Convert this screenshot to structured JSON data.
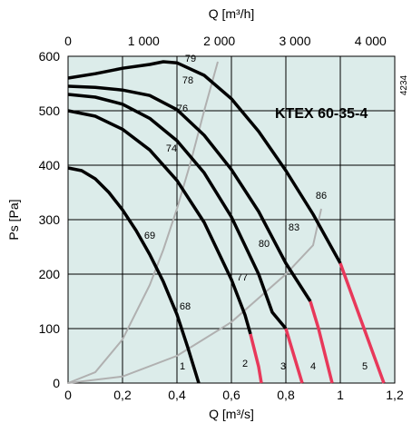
{
  "chart_data": {
    "type": "line",
    "title": "KTEX 60-35-4",
    "code": "4234",
    "xlabel": "Q [m³/s]",
    "x2label": "Q [m³/h]",
    "ylabel": "Ps [Pa]",
    "xlim": [
      0,
      1.2
    ],
    "ylim": [
      0,
      600
    ],
    "x2lim": [
      0,
      4320
    ],
    "grid": true,
    "x_ticks": [
      0,
      0.2,
      0.4,
      0.6,
      0.8,
      1.0,
      1.2
    ],
    "x_tick_labels": [
      "0",
      "0,2",
      "0,4",
      "0,6",
      "0,8",
      "1",
      "1,2"
    ],
    "x2_ticks": [
      0,
      1000,
      2000,
      3000,
      4000
    ],
    "x2_tick_labels": [
      "0",
      "1 000",
      "2 000",
      "3 000",
      "4 000"
    ],
    "y_ticks": [
      0,
      100,
      200,
      300,
      400,
      500,
      600
    ],
    "y_tick_labels": [
      "0",
      "100",
      "200",
      "300",
      "400",
      "500",
      "600"
    ],
    "colors": {
      "plot_bg": "#dcecea",
      "fan_curve": "#000000",
      "fan_curve_tail": "#e8385a",
      "system_curve": "#b0b0b0",
      "grid": "#000000"
    },
    "series": [
      {
        "name": "1",
        "points": [
          [
            0,
            395
          ],
          [
            0.05,
            390
          ],
          [
            0.1,
            375
          ],
          [
            0.15,
            350
          ],
          [
            0.2,
            318
          ],
          [
            0.25,
            280
          ],
          [
            0.3,
            236
          ],
          [
            0.35,
            186
          ],
          [
            0.4,
            126
          ],
          [
            0.44,
            65
          ],
          [
            0.48,
            0
          ]
        ]
      },
      {
        "name": "2",
        "points": [
          [
            0,
            500
          ],
          [
            0.1,
            490
          ],
          [
            0.2,
            466
          ],
          [
            0.3,
            428
          ],
          [
            0.4,
            372
          ],
          [
            0.5,
            295
          ],
          [
            0.6,
            190
          ],
          [
            0.65,
            125
          ],
          [
            0.67,
            90
          ],
          [
            0.7,
            30
          ],
          [
            0.71,
            0
          ]
        ],
        "tail_start": 0.67
      },
      {
        "name": "3",
        "points": [
          [
            0,
            530
          ],
          [
            0.1,
            525
          ],
          [
            0.2,
            512
          ],
          [
            0.3,
            486
          ],
          [
            0.4,
            445
          ],
          [
            0.5,
            386
          ],
          [
            0.6,
            305
          ],
          [
            0.7,
            200
          ],
          [
            0.75,
            130
          ],
          [
            0.8,
            100
          ],
          [
            0.86,
            0
          ]
        ],
        "tail_start": 0.8
      },
      {
        "name": "4",
        "points": [
          [
            0,
            545
          ],
          [
            0.1,
            543
          ],
          [
            0.2,
            538
          ],
          [
            0.3,
            528
          ],
          [
            0.4,
            502
          ],
          [
            0.5,
            455
          ],
          [
            0.6,
            392
          ],
          [
            0.7,
            315
          ],
          [
            0.8,
            220
          ],
          [
            0.89,
            150
          ],
          [
            0.92,
            100
          ],
          [
            0.97,
            0
          ]
        ],
        "tail_start": 0.89
      },
      {
        "name": "5",
        "points": [
          [
            0,
            560
          ],
          [
            0.1,
            568
          ],
          [
            0.2,
            578
          ],
          [
            0.3,
            585
          ],
          [
            0.35,
            590
          ],
          [
            0.4,
            588
          ],
          [
            0.5,
            565
          ],
          [
            0.6,
            522
          ],
          [
            0.7,
            462
          ],
          [
            0.8,
            390
          ],
          [
            0.9,
            310
          ],
          [
            1.0,
            220
          ],
          [
            1.08,
            110
          ],
          [
            1.16,
            0
          ]
        ],
        "tail_start": 1.0
      }
    ],
    "system_curves": [
      {
        "points": [
          [
            0,
            0
          ],
          [
            0.1,
            20
          ],
          [
            0.2,
            80
          ],
          [
            0.3,
            180
          ],
          [
            0.35,
            245
          ],
          [
            0.4,
            320
          ],
          [
            0.45,
            405
          ],
          [
            0.5,
            500
          ],
          [
            0.55,
            590
          ]
        ]
      },
      {
        "points": [
          [
            0,
            0
          ],
          [
            0.2,
            12
          ],
          [
            0.4,
            50
          ],
          [
            0.6,
            112
          ],
          [
            0.8,
            200
          ],
          [
            0.9,
            253
          ],
          [
            0.93,
            320
          ]
        ]
      }
    ],
    "efficiency_labels": [
      {
        "text": "79",
        "x": 0.45,
        "y": 590
      },
      {
        "text": "78",
        "x": 0.44,
        "y": 550
      },
      {
        "text": "76",
        "x": 0.42,
        "y": 498
      },
      {
        "text": "74",
        "x": 0.38,
        "y": 425
      },
      {
        "text": "69",
        "x": 0.3,
        "y": 265
      },
      {
        "text": "68",
        "x": 0.43,
        "y": 135
      },
      {
        "text": "77",
        "x": 0.64,
        "y": 188
      },
      {
        "text": "80",
        "x": 0.72,
        "y": 250
      },
      {
        "text": "83",
        "x": 0.83,
        "y": 280
      },
      {
        "text": "86",
        "x": 0.93,
        "y": 338
      }
    ],
    "speed_labels": [
      {
        "text": "1",
        "x": 0.42,
        "y": 25
      },
      {
        "text": "2",
        "x": 0.65,
        "y": 30
      },
      {
        "text": "3",
        "x": 0.79,
        "y": 25
      },
      {
        "text": "4",
        "x": 0.9,
        "y": 25
      },
      {
        "text": "5",
        "x": 1.09,
        "y": 25
      }
    ]
  }
}
